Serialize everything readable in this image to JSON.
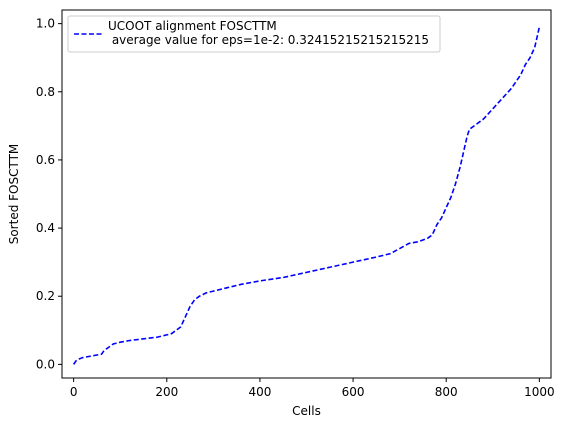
{
  "chart_data": {
    "type": "line",
    "title": "",
    "xlabel": "Cells",
    "ylabel": "Sorted FOSCTTM",
    "xlim": [
      -25,
      1025
    ],
    "ylim": [
      -0.04,
      1.04
    ],
    "x_ticks": [
      0,
      200,
      400,
      600,
      800,
      1000
    ],
    "x_tick_labels": [
      "0",
      "200",
      "400",
      "600",
      "800",
      "1000"
    ],
    "y_ticks": [
      0.0,
      0.2,
      0.4,
      0.6,
      0.8,
      1.0
    ],
    "y_tick_labels": [
      "0.0",
      "0.2",
      "0.4",
      "0.6",
      "0.8",
      "1.0"
    ],
    "grid": false,
    "legend_position": "top-left",
    "series": [
      {
        "name": "UCOOT alignment FOSCTTM\n average value for eps=1e-2: 0.32415215215215215",
        "color": "#0000ff",
        "line_style": "dashed",
        "x": [
          0,
          5,
          10,
          20,
          40,
          60,
          65,
          70,
          85,
          100,
          120,
          150,
          180,
          210,
          220,
          230,
          240,
          250,
          260,
          270,
          285,
          300,
          330,
          360,
          400,
          450,
          500,
          550,
          600,
          650,
          680,
          700,
          720,
          740,
          760,
          770,
          780,
          790,
          800,
          810,
          820,
          830,
          840,
          845,
          850,
          860,
          880,
          900,
          920,
          940,
          960,
          970,
          980,
          990,
          1000
        ],
        "y": [
          0.0,
          0.01,
          0.015,
          0.02,
          0.025,
          0.03,
          0.04,
          0.045,
          0.06,
          0.065,
          0.07,
          0.075,
          0.08,
          0.09,
          0.1,
          0.11,
          0.14,
          0.17,
          0.19,
          0.2,
          0.21,
          0.215,
          0.225,
          0.235,
          0.245,
          0.255,
          0.27,
          0.285,
          0.3,
          0.315,
          0.325,
          0.34,
          0.355,
          0.36,
          0.37,
          0.38,
          0.41,
          0.43,
          0.46,
          0.49,
          0.53,
          0.58,
          0.64,
          0.67,
          0.69,
          0.7,
          0.72,
          0.75,
          0.78,
          0.81,
          0.85,
          0.88,
          0.9,
          0.93,
          0.99
        ]
      }
    ]
  }
}
